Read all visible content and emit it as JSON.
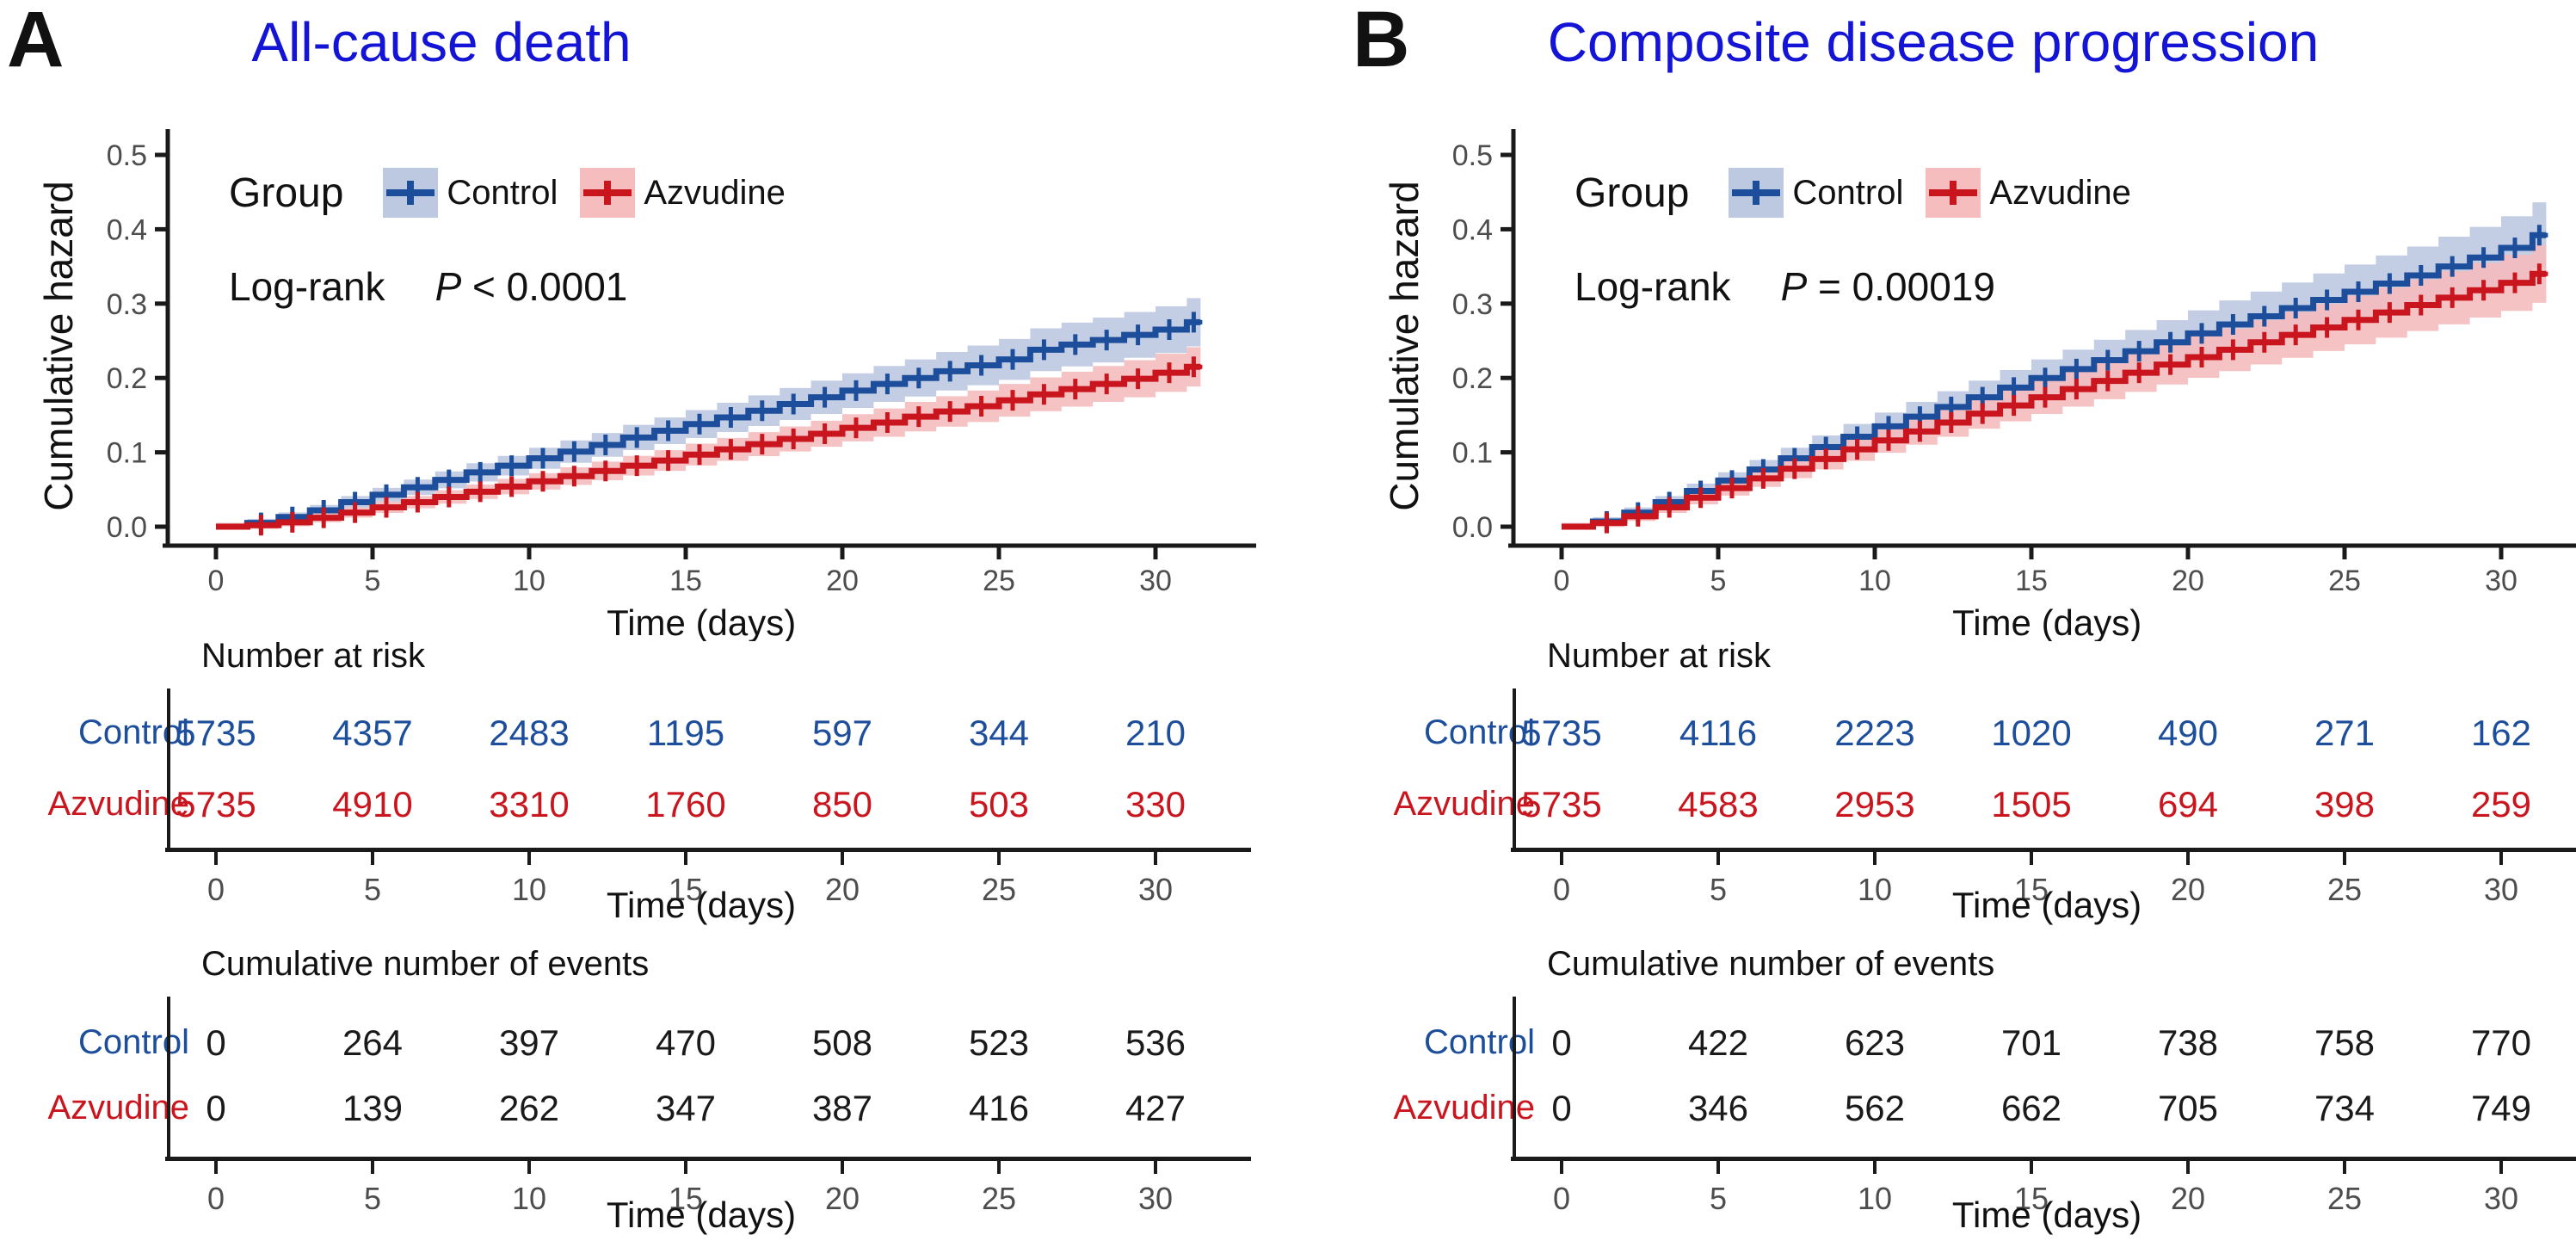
{
  "colors": {
    "title_blue": "#1414d6",
    "control_line": "#1d4e9b",
    "azvudine_line": "#c9151e",
    "control_band": "#bdc9e1",
    "azvudine_band": "#f5bdbe",
    "axis": "#1a1a1a",
    "tick_text": "#4d4d4d",
    "events_text": "#1a1a1a"
  },
  "axes": {
    "xlabel": "Time (days)",
    "ylabel": "Cumulative hazard",
    "x_ticks": [
      "0",
      "5",
      "10",
      "15",
      "20",
      "25",
      "30"
    ],
    "x_tick_days": [
      0,
      5,
      10,
      15,
      20,
      25,
      30
    ],
    "y_ticks": [
      "0.0",
      "0.1",
      "0.2",
      "0.3",
      "0.4",
      "0.5"
    ],
    "y_tick_values": [
      0.0,
      0.1,
      0.2,
      0.3,
      0.4,
      0.5
    ],
    "xlim": [
      0,
      31
    ],
    "ylim": [
      0,
      0.5
    ]
  },
  "legend": {
    "group_label": "Group",
    "control": "Control",
    "azvudine": "Azvudine"
  },
  "risk_title": "Number at risk",
  "events_title": "Cumulative number of events",
  "panels": [
    {
      "letter": "A",
      "title": "All-cause death",
      "logrank_label": "Log-rank",
      "p_symbol": "P",
      "p_text": "< 0.0001"
    },
    {
      "letter": "B",
      "title": "Composite disease progression",
      "logrank_label": "Log-rank",
      "p_symbol": "P",
      "p_text": "= 0.00019"
    }
  ],
  "chart_data": [
    {
      "type": "line",
      "subtype": "step-cumulative-hazard",
      "panel": "A",
      "title": "All-cause death",
      "xlabel": "Time (days)",
      "ylabel": "Cumulative hazard",
      "xlim": [
        0,
        31
      ],
      "ylim": [
        0,
        0.5
      ],
      "logrank_p": "P < 0.0001",
      "x_days": [
        0,
        1,
        2,
        3,
        4,
        5,
        6,
        7,
        8,
        9,
        10,
        11,
        12,
        13,
        14,
        15,
        16,
        17,
        18,
        19,
        20,
        21,
        22,
        23,
        24,
        25,
        26,
        27,
        28,
        29,
        30,
        31
      ],
      "series": [
        {
          "name": "Control",
          "color": "#1d4e9b",
          "values": [
            0,
            0.005,
            0.013,
            0.022,
            0.033,
            0.043,
            0.053,
            0.063,
            0.073,
            0.082,
            0.092,
            0.101,
            0.11,
            0.12,
            0.129,
            0.138,
            0.147,
            0.156,
            0.165,
            0.174,
            0.183,
            0.192,
            0.2,
            0.209,
            0.217,
            0.225,
            0.238,
            0.245,
            0.251,
            0.258,
            0.265,
            0.275
          ]
        },
        {
          "name": "Azvudine",
          "color": "#c9151e",
          "values": [
            0,
            0.002,
            0.006,
            0.012,
            0.019,
            0.026,
            0.033,
            0.04,
            0.047,
            0.054,
            0.061,
            0.068,
            0.075,
            0.082,
            0.089,
            0.097,
            0.104,
            0.111,
            0.118,
            0.125,
            0.133,
            0.14,
            0.148,
            0.155,
            0.162,
            0.17,
            0.178,
            0.185,
            0.192,
            0.199,
            0.207,
            0.215
          ]
        }
      ],
      "risk_times": [
        0,
        5,
        10,
        15,
        20,
        25,
        30
      ],
      "number_at_risk": {
        "Control": [
          "5735",
          "4357",
          "2483",
          "1195",
          "597",
          "344",
          "210"
        ],
        "Azvudine": [
          "5735",
          "4910",
          "3310",
          "1760",
          "850",
          "503",
          "330"
        ]
      },
      "cumulative_events": {
        "Control": [
          "0",
          "264",
          "397",
          "470",
          "508",
          "523",
          "536"
        ],
        "Azvudine": [
          "0",
          "139",
          "262",
          "347",
          "387",
          "416",
          "427"
        ]
      }
    },
    {
      "type": "line",
      "subtype": "step-cumulative-hazard",
      "panel": "B",
      "title": "Composite disease progression",
      "xlabel": "Time (days)",
      "ylabel": "Cumulative hazard",
      "xlim": [
        0,
        31
      ],
      "ylim": [
        0,
        0.5
      ],
      "logrank_p": "P = 0.00019",
      "x_days": [
        0,
        1,
        2,
        3,
        4,
        5,
        6,
        7,
        8,
        9,
        10,
        11,
        12,
        13,
        14,
        15,
        16,
        17,
        18,
        19,
        20,
        21,
        22,
        23,
        24,
        25,
        26,
        27,
        28,
        29,
        30,
        31
      ],
      "series": [
        {
          "name": "Control",
          "color": "#1d4e9b",
          "values": [
            0,
            0.007,
            0.019,
            0.033,
            0.048,
            0.062,
            0.077,
            0.092,
            0.107,
            0.121,
            0.135,
            0.148,
            0.161,
            0.174,
            0.187,
            0.2,
            0.212,
            0.224,
            0.236,
            0.248,
            0.26,
            0.272,
            0.283,
            0.294,
            0.305,
            0.316,
            0.327,
            0.338,
            0.35,
            0.362,
            0.375,
            0.392
          ]
        },
        {
          "name": "Azvudine",
          "color": "#c9151e",
          "values": [
            0,
            0.005,
            0.014,
            0.026,
            0.039,
            0.052,
            0.065,
            0.078,
            0.091,
            0.104,
            0.116,
            0.128,
            0.14,
            0.152,
            0.163,
            0.174,
            0.185,
            0.196,
            0.207,
            0.218,
            0.228,
            0.238,
            0.248,
            0.258,
            0.268,
            0.278,
            0.288,
            0.298,
            0.308,
            0.318,
            0.328,
            0.34
          ]
        }
      ],
      "risk_times": [
        0,
        5,
        10,
        15,
        20,
        25,
        30
      ],
      "number_at_risk": {
        "Control": [
          "5735",
          "4116",
          "2223",
          "1020",
          "490",
          "271",
          "162"
        ],
        "Azvudine": [
          "5735",
          "4583",
          "2953",
          "1505",
          "694",
          "398",
          "259"
        ]
      },
      "cumulative_events": {
        "Control": [
          "0",
          "422",
          "623",
          "701",
          "738",
          "758",
          "770"
        ],
        "Azvudine": [
          "0",
          "346",
          "562",
          "662",
          "705",
          "734",
          "749"
        ]
      }
    }
  ]
}
